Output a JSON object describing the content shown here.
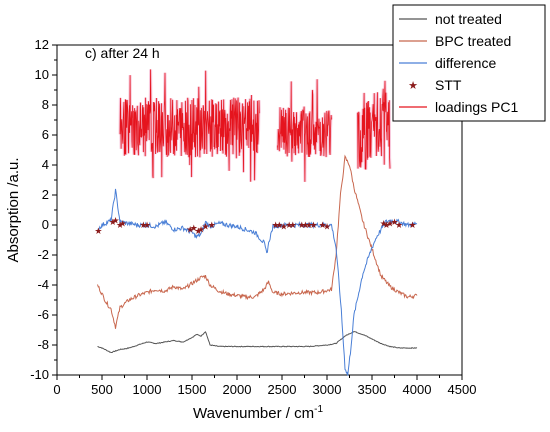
{
  "chart_data": {
    "type": "line",
    "annotation": "c) after 24 h",
    "xlabel": "Wavenumber / cm",
    "xlabel_sup": "-1",
    "ylabel": "Absorption /a.u.",
    "xlim": [
      0,
      4500
    ],
    "ylim": [
      -10,
      12
    ],
    "xticks": [
      "0",
      "500",
      "1000",
      "1500",
      "2000",
      "2500",
      "3000",
      "3500",
      "4000",
      "4500"
    ],
    "xtick_values": [
      0,
      500,
      1000,
      1500,
      2000,
      2500,
      3000,
      3500,
      4000,
      4500
    ],
    "yticks": [
      "-10",
      "-8",
      "-6",
      "-4",
      "-2",
      "0",
      "2",
      "4",
      "6",
      "8",
      "10",
      "12"
    ],
    "ytick_values": [
      -10,
      -8,
      -6,
      -4,
      -2,
      0,
      2,
      4,
      6,
      8,
      10,
      12
    ],
    "legend_position": "top-right",
    "series": [
      {
        "name": "not treated",
        "color": "#555555",
        "style": "line",
        "x": [
          450,
          500,
          600,
          700,
          800,
          900,
          1000,
          1100,
          1200,
          1300,
          1400,
          1500,
          1550,
          1600,
          1650,
          1700,
          1800,
          2000,
          2200,
          2400,
          2600,
          2800,
          3000,
          3100,
          3200,
          3300,
          3400,
          3500,
          3600,
          3700,
          3800,
          4000
        ],
        "y": [
          -8.1,
          -8.2,
          -8.5,
          -8.3,
          -8.2,
          -8.0,
          -7.8,
          -7.9,
          -7.8,
          -7.7,
          -7.8,
          -7.5,
          -7.3,
          -7.4,
          -7.1,
          -8.0,
          -8.1,
          -8.1,
          -8.1,
          -8.1,
          -8.1,
          -8.1,
          -8.0,
          -7.9,
          -7.4,
          -7.1,
          -7.3,
          -7.6,
          -7.9,
          -8.1,
          -8.2,
          -8.2
        ]
      },
      {
        "name": "BPC treated",
        "color": "#c8674e",
        "style": "line",
        "x": [
          450,
          500,
          550,
          600,
          650,
          700,
          800,
          900,
          1000,
          1100,
          1200,
          1300,
          1400,
          1500,
          1550,
          1600,
          1650,
          1700,
          1800,
          1900,
          2000,
          2100,
          2200,
          2300,
          2350,
          2400,
          2500,
          2700,
          2900,
          3050,
          3100,
          3150,
          3200,
          3250,
          3300,
          3400,
          3500,
          3550,
          3600,
          3700,
          3800,
          3900,
          4000
        ],
        "y": [
          -4.0,
          -4.6,
          -5.2,
          -5.6,
          -6.8,
          -5.5,
          -5.0,
          -4.7,
          -4.5,
          -4.3,
          -4.4,
          -4.1,
          -4.3,
          -3.9,
          -3.7,
          -3.5,
          -3.4,
          -4.0,
          -4.4,
          -4.6,
          -4.7,
          -4.8,
          -4.8,
          -4.3,
          -3.8,
          -4.5,
          -4.6,
          -4.5,
          -4.5,
          -4.3,
          -2.0,
          2.0,
          4.5,
          4.0,
          2.5,
          0.2,
          -1.6,
          -2.5,
          -3.4,
          -4.1,
          -4.5,
          -4.8,
          -4.7
        ]
      },
      {
        "name": "difference",
        "color": "#4a7fd6",
        "style": "line",
        "x": [
          450,
          500,
          600,
          650,
          700,
          800,
          900,
          1000,
          1100,
          1200,
          1300,
          1400,
          1500,
          1550,
          1600,
          1650,
          1700,
          1800,
          1900,
          2000,
          2100,
          2200,
          2300,
          2330,
          2360,
          2400,
          2500,
          2700,
          2900,
          3050,
          3100,
          3150,
          3200,
          3230,
          3260,
          3300,
          3400,
          3500,
          3550,
          3600,
          3650,
          3700,
          3800,
          3900,
          4000
        ],
        "y": [
          -0.3,
          0.0,
          0.3,
          2.3,
          0.2,
          0.1,
          0.0,
          0.0,
          -0.1,
          0.2,
          -0.3,
          -0.2,
          -0.5,
          -0.8,
          -0.6,
          0.2,
          -0.1,
          0.1,
          0.0,
          -0.1,
          -0.3,
          -0.5,
          -1.2,
          -1.9,
          -1.0,
          -0.1,
          0.0,
          0.0,
          0.0,
          0.0,
          -1.5,
          -5.0,
          -9.5,
          -10.0,
          -8.5,
          -6.0,
          -3.2,
          -1.5,
          -0.8,
          -0.3,
          0.2,
          0.3,
          0.2,
          0.0,
          0.1
        ]
      },
      {
        "name": "STT",
        "color": "#8b1a1a",
        "style": "star",
        "x": [
          460,
          620,
          650,
          700,
          730,
          960,
          1000,
          1480,
          1520,
          1570,
          1600,
          1650,
          1720,
          2430,
          2470,
          2520,
          2580,
          2620,
          2720,
          2760,
          2800,
          2850,
          2950,
          3000,
          3630,
          3660,
          3700,
          3750,
          3800,
          3950
        ],
        "y": [
          -0.4,
          0.2,
          0.3,
          0.0,
          0.1,
          0.0,
          0.0,
          -0.3,
          -0.2,
          -0.4,
          -0.3,
          -0.1,
          0.0,
          0.0,
          0.0,
          -0.1,
          0.0,
          0.0,
          0.0,
          0.0,
          0.0,
          0.0,
          0.0,
          -0.1,
          0.1,
          0.0,
          0.1,
          0.2,
          0.0,
          0.0
        ]
      },
      {
        "name": "loadings PC1",
        "color": "#e5141e",
        "style": "noisy-band",
        "segments": [
          {
            "x": [
              700,
              2250
            ],
            "y": [
              4.5,
              8.5
            ]
          },
          {
            "x": [
              2450,
              3050
            ],
            "y": [
              4.5,
              8.0
            ]
          },
          {
            "x": [
              3340,
              3700
            ],
            "y": [
              3.5,
              9.0
            ]
          }
        ]
      }
    ]
  }
}
